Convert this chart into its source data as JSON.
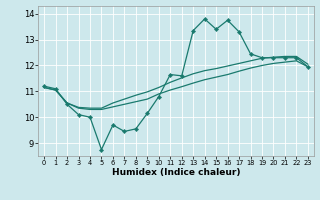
{
  "xlabel": "Humidex (Indice chaleur)",
  "xlim": [
    -0.5,
    23.5
  ],
  "ylim": [
    8.5,
    14.3
  ],
  "yticks": [
    9,
    10,
    11,
    12,
    13,
    14
  ],
  "xticks": [
    0,
    1,
    2,
    3,
    4,
    5,
    6,
    7,
    8,
    9,
    10,
    11,
    12,
    13,
    14,
    15,
    16,
    17,
    18,
    19,
    20,
    21,
    22,
    23
  ],
  "bg_color": "#cde8ec",
  "line_color": "#1a7a6e",
  "grid_color": "#ffffff",
  "line1_y": [
    11.2,
    11.1,
    10.5,
    10.1,
    10.0,
    8.75,
    9.7,
    9.45,
    9.55,
    10.15,
    10.8,
    11.65,
    11.6,
    13.35,
    13.8,
    13.4,
    13.75,
    13.3,
    12.45,
    12.3,
    12.3,
    12.3,
    12.3,
    11.95
  ],
  "line2_y": [
    11.15,
    11.05,
    10.55,
    10.35,
    10.3,
    10.3,
    10.4,
    10.5,
    10.6,
    10.7,
    10.9,
    11.05,
    11.18,
    11.32,
    11.45,
    11.55,
    11.65,
    11.78,
    11.9,
    12.0,
    12.08,
    12.13,
    12.18,
    11.95
  ],
  "line3_y": [
    11.15,
    11.05,
    10.55,
    10.38,
    10.35,
    10.35,
    10.55,
    10.7,
    10.85,
    10.98,
    11.15,
    11.35,
    11.52,
    11.68,
    11.8,
    11.88,
    11.98,
    12.08,
    12.18,
    12.28,
    12.32,
    12.35,
    12.35,
    12.05
  ]
}
